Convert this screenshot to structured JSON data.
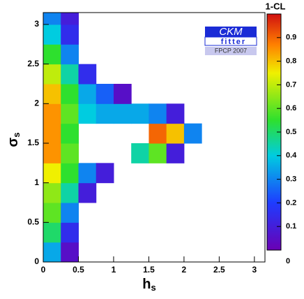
{
  "chart_data": {
    "type": "heatmap",
    "colorbar_label": "1-CL",
    "logo": {
      "top": "CKM",
      "middle": "fitter",
      "bottom": "FPCP 2007"
    },
    "xlabel": {
      "main": "h",
      "sub": "s"
    },
    "ylabel": {
      "main": "σ",
      "sub": "s"
    },
    "xlim": [
      0,
      3.15
    ],
    "ylim": [
      0,
      3.15
    ],
    "xticks": [
      0,
      0.5,
      1,
      1.5,
      2,
      2.5,
      3
    ],
    "yticks": [
      0,
      0.5,
      1,
      1.5,
      2,
      2.5,
      3
    ],
    "x_edges": [
      0,
      0.25,
      0.5,
      0.75,
      1,
      1.25,
      1.5,
      1.75,
      2,
      2.25,
      2.5,
      2.75,
      3,
      3.15
    ],
    "y_edges": [
      0,
      0.25,
      0.5,
      0.75,
      1,
      1.25,
      1.5,
      1.75,
      2,
      2.25,
      2.5,
      2.75,
      3,
      3.15
    ],
    "values": [
      [
        0.35,
        0.05,
        null,
        null,
        null,
        null,
        null,
        null,
        null,
        null,
        null,
        null,
        null
      ],
      [
        0.5,
        0.15,
        null,
        null,
        null,
        null,
        null,
        null,
        null,
        null,
        null,
        null,
        null
      ],
      [
        0.6,
        0.3,
        null,
        null,
        null,
        null,
        null,
        null,
        null,
        null,
        null,
        null,
        null
      ],
      [
        0.65,
        0.45,
        0.1,
        null,
        null,
        null,
        null,
        null,
        null,
        null,
        null,
        null,
        null
      ],
      [
        0.75,
        0.55,
        0.3,
        0.1,
        null,
        null,
        null,
        null,
        null,
        null,
        null,
        null,
        null
      ],
      [
        0.85,
        0.6,
        null,
        null,
        null,
        0.45,
        0.6,
        0.1,
        null,
        null,
        null,
        null,
        null
      ],
      [
        0.85,
        0.55,
        null,
        null,
        null,
        null,
        0.9,
        0.8,
        0.3,
        null,
        null,
        null,
        null
      ],
      [
        0.85,
        0.6,
        0.4,
        0.35,
        0.35,
        0.35,
        0.3,
        0.1,
        null,
        null,
        null,
        null,
        null
      ],
      [
        0.8,
        0.55,
        0.35,
        0.25,
        0.05,
        null,
        null,
        null,
        null,
        null,
        null,
        null,
        null
      ],
      [
        0.7,
        0.45,
        0.15,
        null,
        null,
        null,
        null,
        null,
        null,
        null,
        null,
        null,
        null
      ],
      [
        0.55,
        0.3,
        null,
        null,
        null,
        null,
        null,
        null,
        null,
        null,
        null,
        null,
        null
      ],
      [
        0.4,
        0.15,
        null,
        null,
        null,
        null,
        null,
        null,
        null,
        null,
        null,
        null,
        null
      ],
      [
        0.3,
        0.1,
        null,
        null,
        null,
        null,
        null,
        null,
        null,
        null,
        null,
        null,
        null
      ]
    ],
    "zlim": [
      0,
      1
    ],
    "zticks": [
      0,
      0.1,
      0.2,
      0.3,
      0.4,
      0.5,
      0.6,
      0.7,
      0.8,
      0.9
    ],
    "colormap": [
      {
        "value": 0,
        "color": "#6a00b4"
      },
      {
        "value": 0.2,
        "color": "#1e3cff"
      },
      {
        "value": 0.4,
        "color": "#00cce0"
      },
      {
        "value": 0.55,
        "color": "#2ee02e"
      },
      {
        "value": 0.75,
        "color": "#f0f000"
      },
      {
        "value": 0.87,
        "color": "#ff8000"
      },
      {
        "value": 1,
        "color": "#d01010"
      }
    ]
  }
}
